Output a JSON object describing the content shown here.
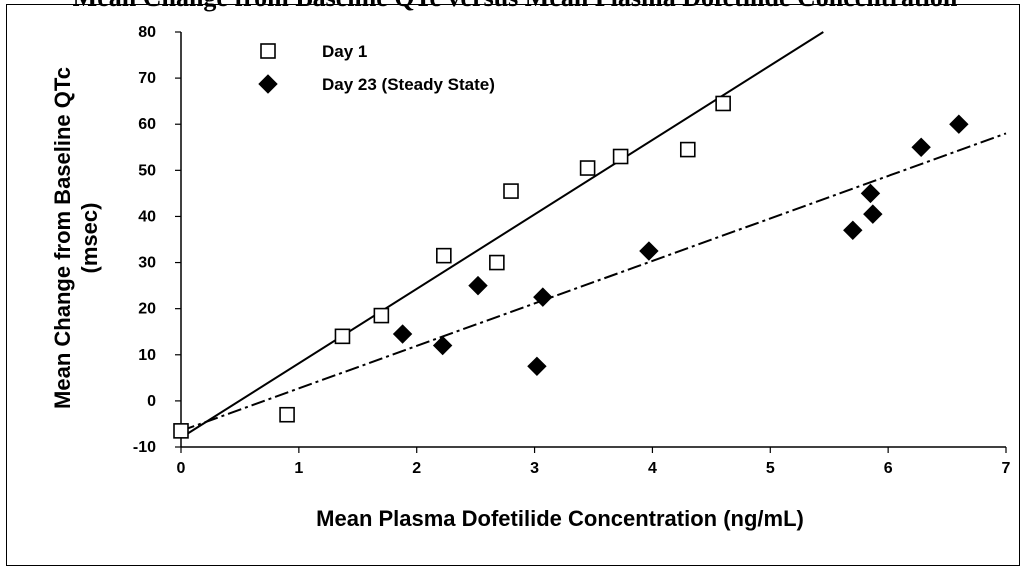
{
  "page_title_visible": "Mean Change from Baseline QTc versus Mean Plasma Dofetilide Concentration",
  "chart_data": {
    "type": "scatter",
    "xlabel": "Mean Plasma Dofetilide Concentration (ng/mL)",
    "ylabel": "Mean Change from Baseline QTc",
    "ylabel_unit": "(msec)",
    "xlim": [
      0,
      7
    ],
    "ylim": [
      -10,
      80
    ],
    "x_ticks": [
      "0",
      "1",
      "2",
      "3",
      "4",
      "5",
      "6",
      "7"
    ],
    "y_ticks": [
      "-10",
      "0",
      "10",
      "20",
      "30",
      "40",
      "50",
      "60",
      "70",
      "80"
    ],
    "grid": false,
    "legend_position": "top-left",
    "series": [
      {
        "name": "Day 1",
        "marker": "open-square",
        "color": "#000000",
        "points": [
          {
            "x": 0.0,
            "y": -6.5
          },
          {
            "x": 0.9,
            "y": -3.0
          },
          {
            "x": 1.37,
            "y": 14
          },
          {
            "x": 1.7,
            "y": 18.5
          },
          {
            "x": 2.23,
            "y": 31.5
          },
          {
            "x": 2.68,
            "y": 30.0
          },
          {
            "x": 2.8,
            "y": 45.5
          },
          {
            "x": 3.45,
            "y": 50.5
          },
          {
            "x": 3.73,
            "y": 53.0
          },
          {
            "x": 4.3,
            "y": 54.5
          },
          {
            "x": 4.6,
            "y": 64.5
          }
        ],
        "fit": {
          "style": "solid",
          "x0": 0.0,
          "y0": -8.0,
          "x1": 5.45,
          "y1": 80.0
        }
      },
      {
        "name": "Day 23 (Steady State)",
        "marker": "filled-diamond",
        "color": "#000000",
        "points": [
          {
            "x": 1.88,
            "y": 14.5
          },
          {
            "x": 2.22,
            "y": 12.0
          },
          {
            "x": 2.52,
            "y": 25.0
          },
          {
            "x": 3.02,
            "y": 7.5
          },
          {
            "x": 3.07,
            "y": 22.5
          },
          {
            "x": 3.97,
            "y": 32.5
          },
          {
            "x": 5.7,
            "y": 37.0
          },
          {
            "x": 5.85,
            "y": 45.0
          },
          {
            "x": 5.87,
            "y": 40.5
          },
          {
            "x": 6.28,
            "y": 55.0
          },
          {
            "x": 6.6,
            "y": 60.0
          }
        ],
        "fit": {
          "style": "dash-dot",
          "x0": 0.0,
          "y0": -6.5,
          "x1": 7.0,
          "y1": 58.0
        }
      }
    ]
  }
}
